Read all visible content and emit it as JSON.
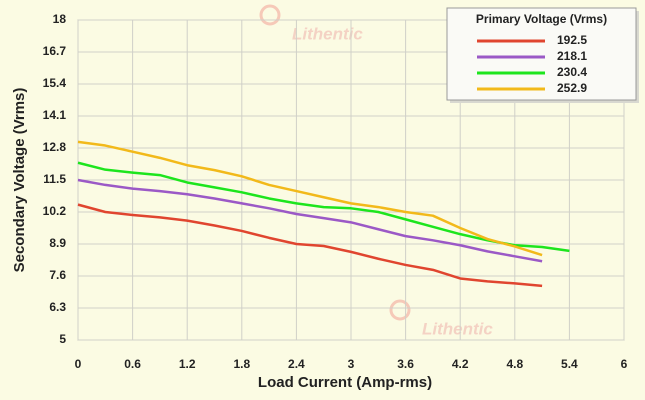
{
  "chart_data": {
    "type": "line",
    "x_label": "Load Current (Amp-rms)",
    "y_label": "Secondary Voltage (Vrms)",
    "legend_title": "Primary Voltage (Vrms)",
    "legend_position": "top-right",
    "watermark": "Lithentic",
    "grid": true,
    "x": [
      0,
      0.3,
      0.6,
      0.9,
      1.2,
      1.5,
      1.8,
      2.1,
      2.4,
      2.7,
      3.0,
      3.3,
      3.6,
      3.9,
      4.2,
      4.5,
      4.8,
      5.1,
      5.4
    ],
    "series": [
      {
        "name": "192.5",
        "color": "#e0452f",
        "values": [
          10.5,
          10.2,
          10.08,
          9.98,
          9.85,
          9.65,
          9.43,
          9.15,
          8.9,
          8.82,
          8.58,
          8.3,
          8.05,
          7.85,
          7.5,
          7.38,
          7.3,
          7.2,
          null
        ]
      },
      {
        "name": "218.1",
        "color": "#9b59c6",
        "values": [
          11.5,
          11.3,
          11.15,
          11.05,
          10.92,
          10.75,
          10.55,
          10.35,
          10.12,
          9.95,
          9.78,
          9.5,
          9.22,
          9.05,
          8.85,
          8.6,
          8.4,
          8.2,
          null
        ]
      },
      {
        "name": "230.4",
        "color": "#1de51d",
        "values": [
          12.2,
          11.92,
          11.8,
          11.7,
          11.4,
          11.2,
          11.0,
          10.75,
          10.55,
          10.4,
          10.35,
          10.2,
          9.9,
          9.6,
          9.3,
          9.05,
          8.85,
          8.78,
          8.62
        ]
      },
      {
        "name": "252.9",
        "color": "#f2b91a",
        "values": [
          13.05,
          12.9,
          12.65,
          12.4,
          12.1,
          11.9,
          11.65,
          11.3,
          11.05,
          10.8,
          10.55,
          10.4,
          10.2,
          10.05,
          9.55,
          9.1,
          8.8,
          8.45,
          null
        ]
      }
    ],
    "xlim": [
      0,
      6
    ],
    "xticks": [
      0,
      0.6,
      1.2,
      1.8,
      2.4,
      3,
      3.6,
      4.2,
      4.8,
      5.4,
      6
    ],
    "ylim": [
      5,
      18
    ],
    "yticks": [
      5,
      6.3,
      7.6,
      8.9,
      10.2,
      11.5,
      12.8,
      14.1,
      15.4,
      16.7,
      18
    ]
  }
}
